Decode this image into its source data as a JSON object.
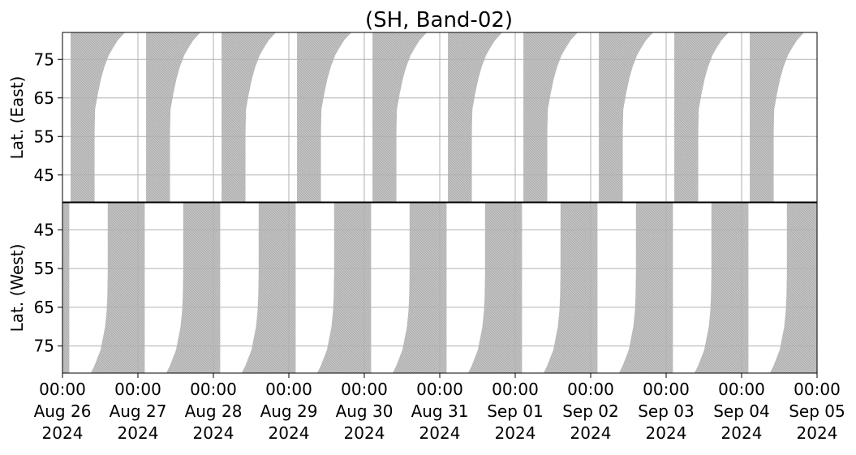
{
  "chart_data": {
    "type": "area",
    "title": "(SH, Band-02)",
    "panels": [
      {
        "name": "east",
        "ylabel": "Lat. (East)",
        "yticks": [
          45,
          55,
          65,
          75
        ],
        "ylim": [
          38,
          82
        ],
        "inverted": false
      },
      {
        "name": "west",
        "ylabel": "Lat. (West)",
        "yticks": [
          75,
          65,
          55,
          45
        ],
        "ylim": [
          38,
          82
        ],
        "inverted": true
      }
    ],
    "xaxis": {
      "range_days": [
        0,
        10
      ],
      "ticks": [
        {
          "time": "00:00",
          "date": "Aug 26",
          "year": "2024"
        },
        {
          "time": "00:00",
          "date": "Aug 27",
          "year": "2024"
        },
        {
          "time": "00:00",
          "date": "Aug 28",
          "year": "2024"
        },
        {
          "time": "00:00",
          "date": "Aug 29",
          "year": "2024"
        },
        {
          "time": "00:00",
          "date": "Aug 30",
          "year": "2024"
        },
        {
          "time": "00:00",
          "date": "Aug 31",
          "year": "2024"
        },
        {
          "time": "00:00",
          "date": "Sep 01",
          "year": "2024"
        },
        {
          "time": "00:00",
          "date": "Sep 02",
          "year": "2024"
        },
        {
          "time": "00:00",
          "date": "Sep 03",
          "year": "2024"
        },
        {
          "time": "00:00",
          "date": "Sep 04",
          "year": "2024"
        },
        {
          "time": "00:00",
          "date": "Sep 05",
          "year": "2024"
        }
      ]
    },
    "coverage_bands": {
      "east": [
        {
          "start": "2024-08-26 02:36",
          "end": "2024-08-26 22:48"
        },
        {
          "start": "2024-08-27 02:36",
          "end": "2024-08-27 22:48"
        },
        {
          "start": "2024-08-28 02:36",
          "end": "2024-08-28 22:48"
        },
        {
          "start": "2024-08-29 02:36",
          "end": "2024-08-29 22:48"
        },
        {
          "start": "2024-08-30 02:36",
          "end": "2024-08-30 22:48"
        },
        {
          "start": "2024-08-31 02:36",
          "end": "2024-08-31 22:48"
        },
        {
          "start": "2024-09-01 02:36",
          "end": "2024-09-01 22:48"
        },
        {
          "start": "2024-09-02 02:36",
          "end": "2024-09-02 22:48"
        },
        {
          "start": "2024-09-03 02:36",
          "end": "2024-09-03 22:48"
        },
        {
          "start": "2024-09-04 02:36",
          "end": "2024-09-04 22:48"
        }
      ],
      "west": [
        {
          "start": "2024-08-25 21:50",
          "end": "2024-08-26 02:10"
        },
        {
          "start": "2024-08-26 09:00",
          "end": "2024-08-27 02:10"
        },
        {
          "start": "2024-08-27 09:00",
          "end": "2024-08-28 02:10"
        },
        {
          "start": "2024-08-28 09:00",
          "end": "2024-08-29 02:10"
        },
        {
          "start": "2024-08-29 09:00",
          "end": "2024-08-30 02:10"
        },
        {
          "start": "2024-08-30 09:00",
          "end": "2024-08-31 02:10"
        },
        {
          "start": "2024-08-31 09:00",
          "end": "2024-09-01 02:10"
        },
        {
          "start": "2024-09-01 09:00",
          "end": "2024-09-02 02:10"
        },
        {
          "start": "2024-09-02 09:00",
          "end": "2024-09-03 02:10"
        },
        {
          "start": "2024-09-03 09:00",
          "end": "2024-09-04 02:10"
        },
        {
          "start": "2024-09-04 09:00",
          "end": "2024-09-05 02:10"
        }
      ]
    },
    "grid": true,
    "colors": {
      "fill": "#c0c0c0",
      "hatch": "#9a9a9a",
      "grid": "#b0b0b0",
      "axis": "#000000"
    }
  }
}
